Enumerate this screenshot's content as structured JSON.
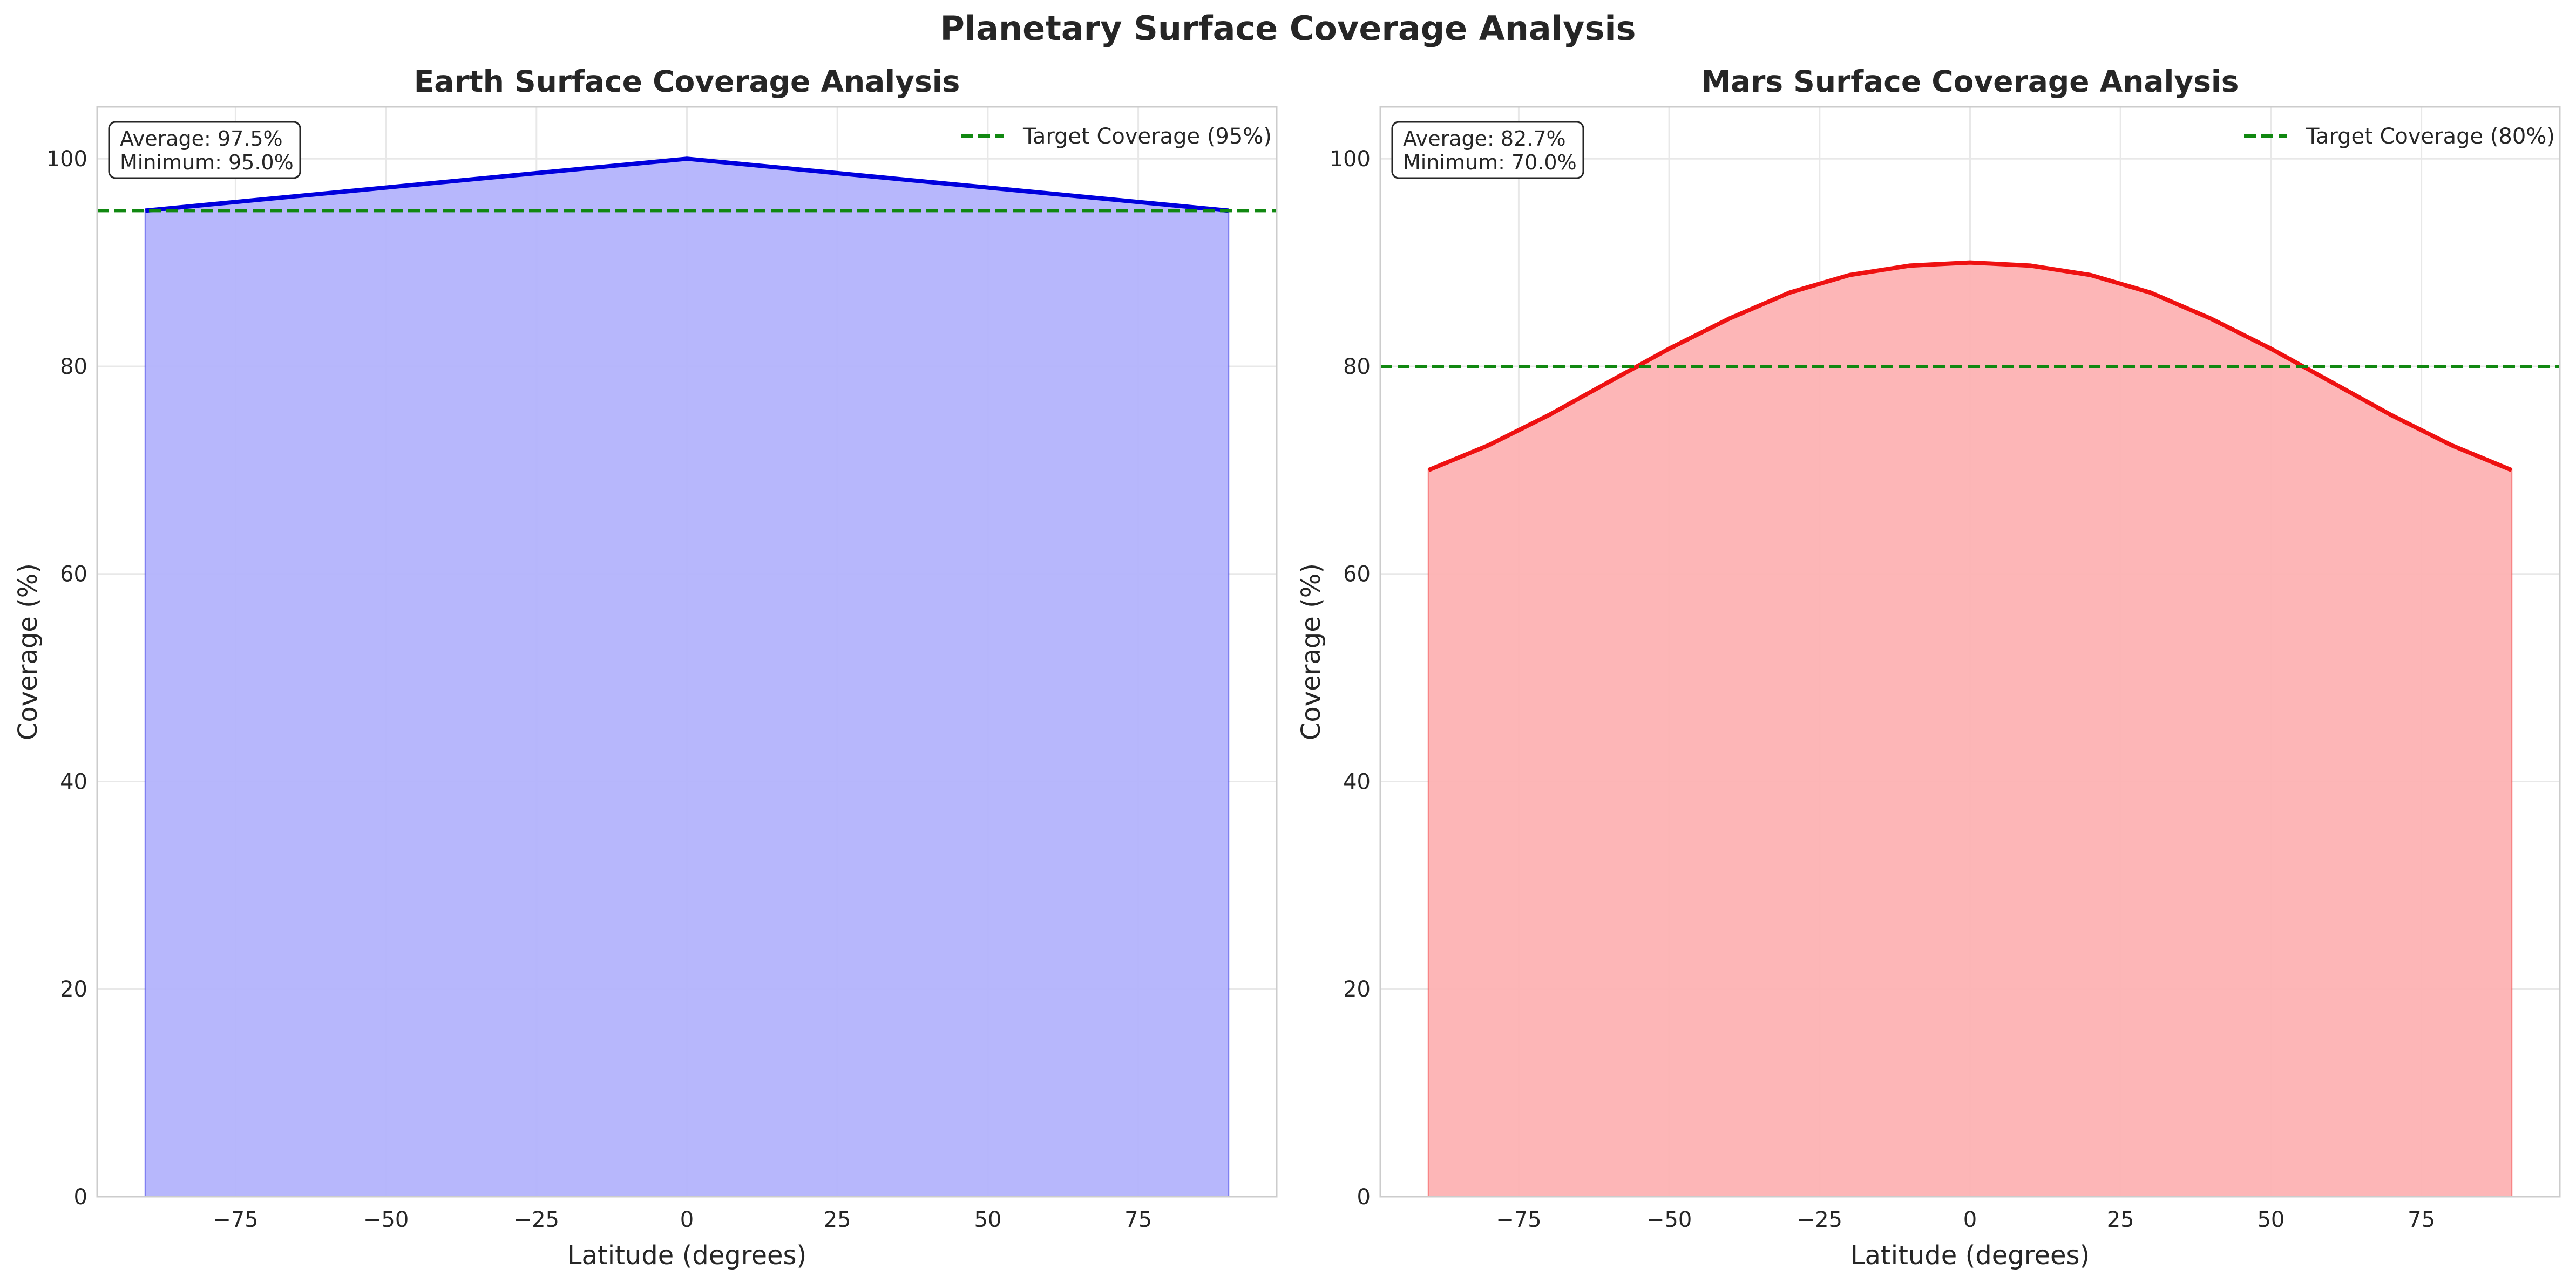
{
  "figure": {
    "suptitle": "Planetary Surface Coverage Analysis"
  },
  "chart_data": [
    {
      "type": "area",
      "title": "Earth Surface Coverage Analysis",
      "xlabel": "Latitude (degrees)",
      "ylabel": "Coverage (%)",
      "xlim": [
        -98,
        98
      ],
      "ylim": [
        0,
        105
      ],
      "xticks": [
        -75,
        -50,
        -25,
        0,
        25,
        50,
        75
      ],
      "yticks": [
        0,
        20,
        40,
        60,
        80,
        100
      ],
      "grid": true,
      "series": [
        {
          "x": [
            -90,
            0,
            90
          ],
          "y": [
            95,
            100,
            95
          ],
          "line_color": "#0000dd",
          "fill_color": "#b1b1fc"
        }
      ],
      "reference_line": {
        "y": 95,
        "label": "Target Coverage (95%)",
        "color": "#118811",
        "style": "dashed"
      },
      "stats_box": {
        "average": "Average: 97.5%",
        "minimum": "Minimum: 95.0%"
      },
      "legend_position": "top-right"
    },
    {
      "type": "area",
      "title": "Mars Surface Coverage Analysis",
      "xlabel": "Latitude (degrees)",
      "ylabel": "Coverage (%)",
      "xlim": [
        -98,
        98
      ],
      "ylim": [
        0,
        105
      ],
      "xticks": [
        -75,
        -50,
        -25,
        0,
        25,
        50,
        75
      ],
      "yticks": [
        0,
        20,
        40,
        60,
        80,
        100
      ],
      "grid": true,
      "series": [
        {
          "x": [
            -90,
            -80,
            -70,
            -60,
            -50,
            -40,
            -30,
            -20,
            -10,
            0,
            10,
            20,
            30,
            40,
            50,
            60,
            70,
            80,
            90
          ],
          "y": [
            70,
            72.4,
            75.3,
            78.5,
            81.7,
            84.6,
            87.1,
            88.8,
            89.7,
            90,
            89.7,
            88.8,
            87.1,
            84.6,
            81.7,
            78.5,
            75.3,
            72.4,
            70
          ],
          "line_color": "#ee1111",
          "fill_color": "#fdb0b1"
        }
      ],
      "reference_line": {
        "y": 80,
        "label": "Target Coverage (80%)",
        "color": "#118811",
        "style": "dashed"
      },
      "stats_box": {
        "average": "Average: 82.7%",
        "minimum": "Minimum: 70.0%"
      },
      "legend_position": "top-right"
    }
  ]
}
